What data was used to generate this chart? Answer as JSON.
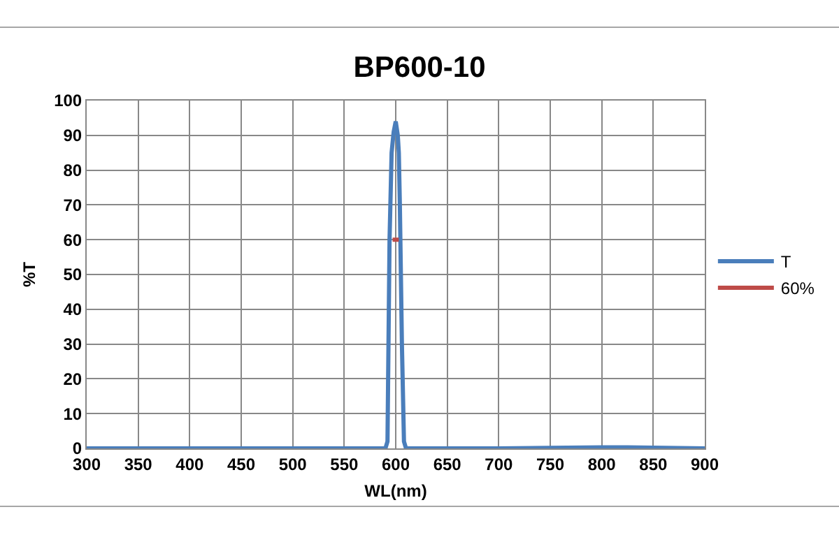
{
  "chart_data": {
    "type": "line",
    "title": "BP600-10",
    "xlabel": "WL(nm)",
    "ylabel": "%T",
    "xlim": [
      300,
      900
    ],
    "xticks": [
      300,
      350,
      400,
      450,
      500,
      550,
      600,
      650,
      700,
      750,
      800,
      850,
      900
    ],
    "ylim": [
      0,
      100
    ],
    "yticks": [
      0,
      10,
      20,
      30,
      40,
      50,
      60,
      70,
      80,
      90,
      100
    ],
    "grid": true,
    "legend": "right",
    "marker": "none",
    "line_style": "solid",
    "series": [
      {
        "name": "T",
        "color": "#4a7ebb",
        "x": [
          300,
          400,
          500,
          580,
          590,
          592,
          594,
          596,
          598,
          600,
          602,
          603,
          604,
          606,
          608,
          610,
          700,
          800,
          825,
          850,
          900
        ],
        "values": [
          0,
          0,
          0,
          0,
          0,
          2,
          60,
          85,
          91,
          94,
          90,
          85,
          70,
          30,
          2,
          0,
          0,
          0.3,
          0.3,
          0.2,
          0
        ]
      },
      {
        "name": "60%",
        "color": "#be4b48",
        "x": [
          597,
          600,
          603
        ],
        "values": [
          60,
          60,
          60
        ]
      }
    ]
  }
}
